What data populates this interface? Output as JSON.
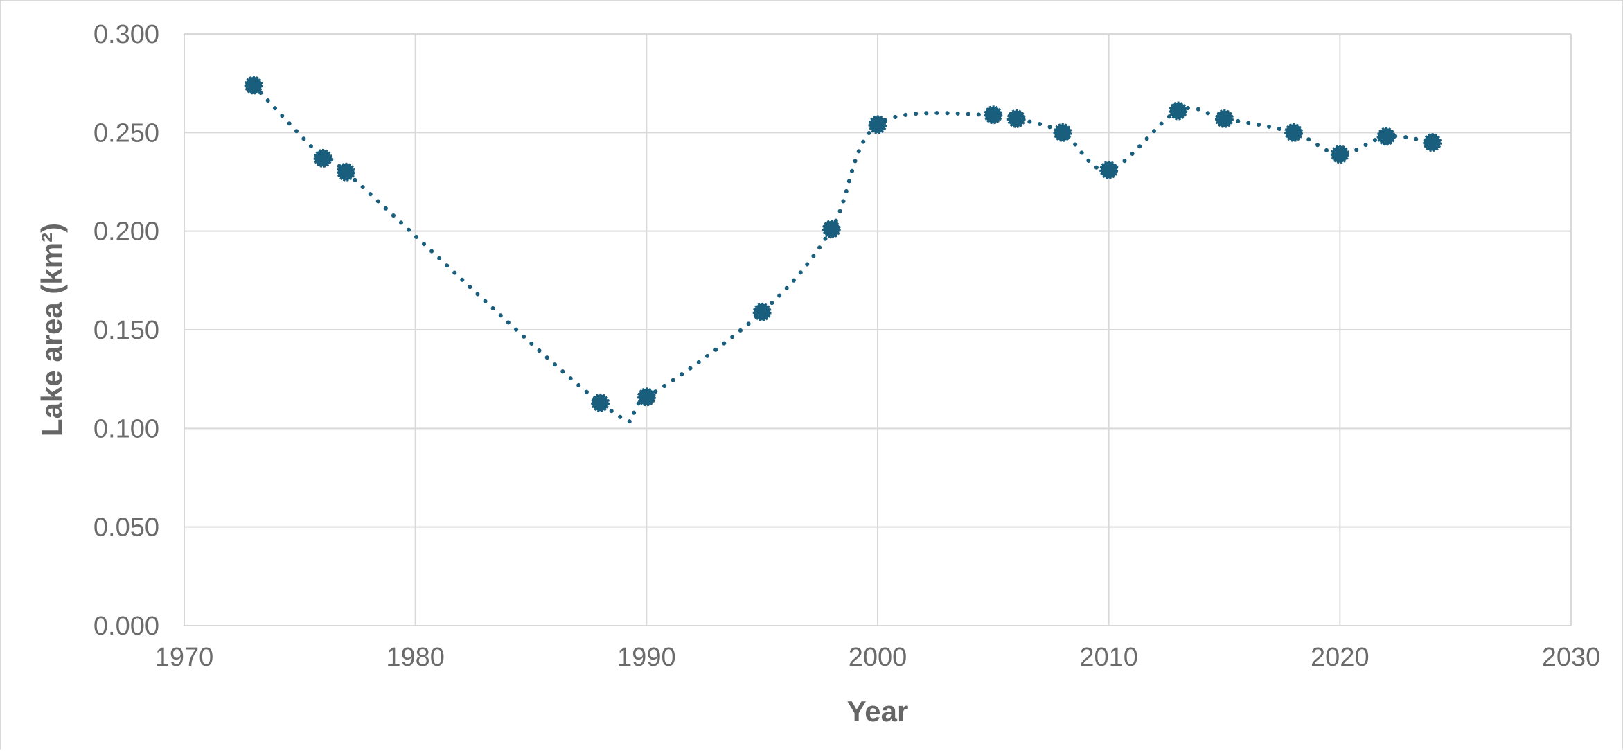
{
  "chart_data": {
    "type": "scatter",
    "title": "",
    "xlabel": "Year",
    "ylabel": "Lake area (km²)",
    "xlim": [
      1970,
      2030
    ],
    "ylim": [
      0,
      0.3
    ],
    "x_ticks": [
      1970,
      1980,
      1990,
      2000,
      2010,
      2020,
      2030
    ],
    "y_ticks": [
      "0.000",
      "0.050",
      "0.100",
      "0.150",
      "0.200",
      "0.250",
      "0.300"
    ],
    "grid": true,
    "legend": "none",
    "marker_color": "#1a5e7e",
    "line_style": "dotted-smooth",
    "series": [
      {
        "x": [
          1973,
          1976,
          1977,
          1988,
          1990,
          1995,
          1998,
          2000,
          2005,
          2006,
          2008,
          2010,
          2013,
          2015,
          2018,
          2020,
          2022,
          2024
        ],
        "y": [
          0.274,
          0.237,
          0.23,
          0.113,
          0.116,
          0.159,
          0.201,
          0.254,
          0.259,
          0.257,
          0.25,
          0.231,
          0.261,
          0.257,
          0.25,
          0.239,
          0.248,
          0.245
        ]
      }
    ]
  }
}
